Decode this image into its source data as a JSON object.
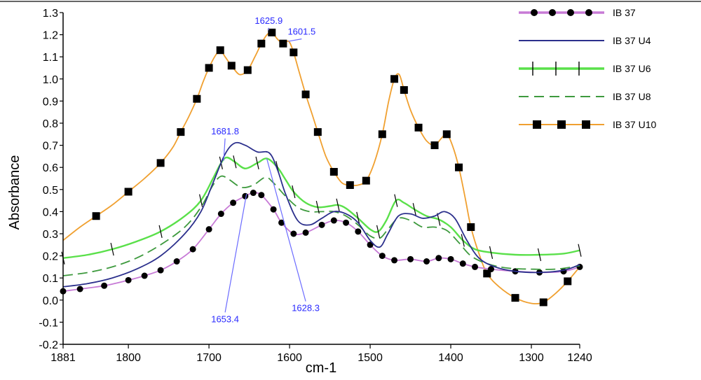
{
  "chart_data": {
    "type": "line",
    "title": "",
    "xlabel": "cm-1",
    "ylabel": "Absorbance",
    "xlim": [
      1881,
      1240
    ],
    "ylim": [
      -0.2,
      1.3
    ],
    "grid": false,
    "legend_position": "top-right",
    "x_ticks": [
      {
        "value": 1881,
        "label": "1881"
      },
      {
        "value": 1800,
        "label": "1800"
      },
      {
        "value": 1700,
        "label": "1700"
      },
      {
        "value": 1600,
        "label": "1600"
      },
      {
        "value": 1500,
        "label": "1500"
      },
      {
        "value": 1400,
        "label": "1400"
      },
      {
        "value": 1300,
        "label": "1300"
      },
      {
        "value": 1240,
        "label": "1240"
      }
    ],
    "y_ticks": [
      {
        "value": 1.3,
        "label": "1.3"
      },
      {
        "value": 1.2,
        "label": "1.2"
      },
      {
        "value": 1.1,
        "label": "1.1"
      },
      {
        "value": 1.0,
        "label": "1.0"
      },
      {
        "value": 0.9,
        "label": "0.9"
      },
      {
        "value": 0.8,
        "label": "0.8"
      },
      {
        "value": 0.7,
        "label": "0.7"
      },
      {
        "value": 0.6,
        "label": "0.6"
      },
      {
        "value": 0.5,
        "label": "0.5"
      },
      {
        "value": 0.4,
        "label": "0.4"
      },
      {
        "value": 0.3,
        "label": "0.3"
      },
      {
        "value": 0.2,
        "label": "0.2"
      },
      {
        "value": 0.1,
        "label": "0.1"
      },
      {
        "value": 0.0,
        "label": "0.0"
      },
      {
        "value": -0.1,
        "label": "-0.1"
      },
      {
        "value": -0.2,
        "label": "-0.2"
      }
    ],
    "series": [
      {
        "name": "IB 37",
        "color": "#c77ad6",
        "marker": "circle",
        "marker_color": "#000000",
        "points": [
          [
            1881,
            0.04
          ],
          [
            1860,
            0.05
          ],
          [
            1830,
            0.065
          ],
          [
            1800,
            0.09
          ],
          [
            1780,
            0.11
          ],
          [
            1760,
            0.135
          ],
          [
            1740,
            0.175
          ],
          [
            1720,
            0.23
          ],
          [
            1700,
            0.32
          ],
          [
            1685,
            0.39
          ],
          [
            1670,
            0.44
          ],
          [
            1655,
            0.47
          ],
          [
            1645,
            0.485
          ],
          [
            1635,
            0.475
          ],
          [
            1620,
            0.41
          ],
          [
            1610,
            0.35
          ],
          [
            1595,
            0.3
          ],
          [
            1580,
            0.305
          ],
          [
            1560,
            0.34
          ],
          [
            1545,
            0.36
          ],
          [
            1530,
            0.35
          ],
          [
            1515,
            0.31
          ],
          [
            1500,
            0.25
          ],
          [
            1485,
            0.2
          ],
          [
            1470,
            0.18
          ],
          [
            1450,
            0.185
          ],
          [
            1430,
            0.175
          ],
          [
            1415,
            0.19
          ],
          [
            1400,
            0.185
          ],
          [
            1385,
            0.165
          ],
          [
            1370,
            0.15
          ],
          [
            1350,
            0.14
          ],
          [
            1320,
            0.13
          ],
          [
            1290,
            0.125
          ],
          [
            1260,
            0.13
          ],
          [
            1240,
            0.15
          ]
        ]
      },
      {
        "name": "IB 37 U4",
        "color": "#2b2f8c",
        "marker": "none",
        "points": [
          [
            1881,
            0.06
          ],
          [
            1850,
            0.075
          ],
          [
            1820,
            0.1
          ],
          [
            1790,
            0.14
          ],
          [
            1760,
            0.2
          ],
          [
            1730,
            0.3
          ],
          [
            1710,
            0.4
          ],
          [
            1695,
            0.53
          ],
          [
            1680,
            0.66
          ],
          [
            1668,
            0.71
          ],
          [
            1655,
            0.7
          ],
          [
            1640,
            0.67
          ],
          [
            1625,
            0.665
          ],
          [
            1615,
            0.59
          ],
          [
            1605,
            0.48
          ],
          [
            1590,
            0.36
          ],
          [
            1575,
            0.34
          ],
          [
            1560,
            0.37
          ],
          [
            1545,
            0.4
          ],
          [
            1530,
            0.39
          ],
          [
            1515,
            0.35
          ],
          [
            1500,
            0.27
          ],
          [
            1488,
            0.24
          ],
          [
            1478,
            0.3
          ],
          [
            1465,
            0.38
          ],
          [
            1450,
            0.39
          ],
          [
            1435,
            0.37
          ],
          [
            1420,
            0.38
          ],
          [
            1408,
            0.4
          ],
          [
            1395,
            0.37
          ],
          [
            1380,
            0.27
          ],
          [
            1365,
            0.19
          ],
          [
            1345,
            0.15
          ],
          [
            1320,
            0.13
          ],
          [
            1290,
            0.125
          ],
          [
            1260,
            0.135
          ],
          [
            1240,
            0.16
          ]
        ]
      },
      {
        "name": "IB 37 U6",
        "color": "#5ae04a",
        "marker": "vtick",
        "marker_color": "#000000",
        "points": [
          [
            1881,
            0.19
          ],
          [
            1850,
            0.205
          ],
          [
            1820,
            0.23
          ],
          [
            1790,
            0.265
          ],
          [
            1760,
            0.31
          ],
          [
            1730,
            0.38
          ],
          [
            1710,
            0.45
          ],
          [
            1695,
            0.55
          ],
          [
            1685,
            0.62
          ],
          [
            1678,
            0.645
          ],
          [
            1668,
            0.625
          ],
          [
            1655,
            0.595
          ],
          [
            1640,
            0.62
          ],
          [
            1628,
            0.64
          ],
          [
            1615,
            0.6
          ],
          [
            1605,
            0.545
          ],
          [
            1595,
            0.49
          ],
          [
            1580,
            0.44
          ],
          [
            1565,
            0.42
          ],
          [
            1550,
            0.425
          ],
          [
            1540,
            0.43
          ],
          [
            1530,
            0.415
          ],
          [
            1515,
            0.37
          ],
          [
            1500,
            0.32
          ],
          [
            1490,
            0.31
          ],
          [
            1480,
            0.36
          ],
          [
            1468,
            0.45
          ],
          [
            1458,
            0.44
          ],
          [
            1445,
            0.41
          ],
          [
            1430,
            0.38
          ],
          [
            1415,
            0.365
          ],
          [
            1400,
            0.33
          ],
          [
            1385,
            0.27
          ],
          [
            1370,
            0.23
          ],
          [
            1350,
            0.215
          ],
          [
            1320,
            0.205
          ],
          [
            1290,
            0.205
          ],
          [
            1260,
            0.21
          ],
          [
            1240,
            0.225
          ]
        ]
      },
      {
        "name": "IB 37 U8",
        "color": "#3e9a3e",
        "marker": "none",
        "dashed": true,
        "points": [
          [
            1881,
            0.11
          ],
          [
            1850,
            0.125
          ],
          [
            1820,
            0.15
          ],
          [
            1790,
            0.19
          ],
          [
            1760,
            0.25
          ],
          [
            1730,
            0.33
          ],
          [
            1710,
            0.42
          ],
          [
            1695,
            0.52
          ],
          [
            1685,
            0.56
          ],
          [
            1675,
            0.545
          ],
          [
            1660,
            0.51
          ],
          [
            1645,
            0.52
          ],
          [
            1630,
            0.555
          ],
          [
            1620,
            0.53
          ],
          [
            1605,
            0.47
          ],
          [
            1590,
            0.42
          ],
          [
            1575,
            0.4
          ],
          [
            1560,
            0.4
          ],
          [
            1545,
            0.4
          ],
          [
            1530,
            0.38
          ],
          [
            1515,
            0.34
          ],
          [
            1500,
            0.29
          ],
          [
            1488,
            0.28
          ],
          [
            1478,
            0.32
          ],
          [
            1465,
            0.37
          ],
          [
            1450,
            0.36
          ],
          [
            1435,
            0.33
          ],
          [
            1420,
            0.33
          ],
          [
            1405,
            0.315
          ],
          [
            1390,
            0.26
          ],
          [
            1375,
            0.2
          ],
          [
            1355,
            0.165
          ],
          [
            1330,
            0.145
          ],
          [
            1300,
            0.14
          ],
          [
            1270,
            0.14
          ],
          [
            1240,
            0.155
          ]
        ]
      },
      {
        "name": "IB 37 U10",
        "color": "#f0a030",
        "marker": "square",
        "marker_color": "#000000",
        "points": [
          [
            1881,
            0.27
          ],
          [
            1860,
            0.33
          ],
          [
            1840,
            0.38
          ],
          [
            1820,
            0.43
          ],
          [
            1800,
            0.49
          ],
          [
            1780,
            0.55
          ],
          [
            1760,
            0.62
          ],
          [
            1745,
            0.69
          ],
          [
            1735,
            0.76
          ],
          [
            1725,
            0.83
          ],
          [
            1715,
            0.91
          ],
          [
            1707,
            0.99
          ],
          [
            1700,
            1.05
          ],
          [
            1693,
            1.1
          ],
          [
            1686,
            1.13
          ],
          [
            1680,
            1.1
          ],
          [
            1672,
            1.06
          ],
          [
            1662,
            1.02
          ],
          [
            1652,
            1.04
          ],
          [
            1643,
            1.1
          ],
          [
            1635,
            1.16
          ],
          [
            1628,
            1.2
          ],
          [
            1622,
            1.21
          ],
          [
            1615,
            1.18
          ],
          [
            1608,
            1.16
          ],
          [
            1601,
            1.17
          ],
          [
            1595,
            1.12
          ],
          [
            1588,
            1.03
          ],
          [
            1580,
            0.93
          ],
          [
            1572,
            0.84
          ],
          [
            1565,
            0.76
          ],
          [
            1555,
            0.65
          ],
          [
            1545,
            0.58
          ],
          [
            1535,
            0.53
          ],
          [
            1525,
            0.52
          ],
          [
            1515,
            0.52
          ],
          [
            1505,
            0.54
          ],
          [
            1495,
            0.62
          ],
          [
            1485,
            0.75
          ],
          [
            1477,
            0.9
          ],
          [
            1470,
            1.0
          ],
          [
            1464,
            1.02
          ],
          [
            1458,
            0.95
          ],
          [
            1450,
            0.86
          ],
          [
            1440,
            0.78
          ],
          [
            1430,
            0.72
          ],
          [
            1420,
            0.7
          ],
          [
            1412,
            0.73
          ],
          [
            1405,
            0.75
          ],
          [
            1398,
            0.7
          ],
          [
            1390,
            0.6
          ],
          [
            1382,
            0.46
          ],
          [
            1375,
            0.33
          ],
          [
            1365,
            0.21
          ],
          [
            1355,
            0.12
          ],
          [
            1340,
            0.06
          ],
          [
            1320,
            0.01
          ],
          [
            1300,
            -0.015
          ],
          [
            1285,
            -0.01
          ],
          [
            1270,
            0.03
          ],
          [
            1255,
            0.085
          ],
          [
            1240,
            0.15
          ]
        ]
      }
    ],
    "annotations": [
      {
        "label": "1625.9",
        "anchor": [
          1625.9,
          1.22
        ],
        "text_at": [
          1625.9,
          1.25
        ]
      },
      {
        "label": "1601.5",
        "anchor": [
          1601.5,
          1.17
        ],
        "text_at": [
          1585,
          1.2
        ]
      },
      {
        "label": "1681.8",
        "anchor": [
          1681.8,
          0.63
        ],
        "text_at": [
          1680,
          0.75
        ]
      },
      {
        "label": "1653.4",
        "anchor": [
          1653.4,
          0.48
        ],
        "text_at": [
          1680,
          -0.1
        ]
      },
      {
        "label": "1628.3",
        "anchor": [
          1628.3,
          0.64
        ],
        "text_at": [
          1580,
          -0.05
        ]
      }
    ],
    "annotation_color": "#2a2aff"
  }
}
